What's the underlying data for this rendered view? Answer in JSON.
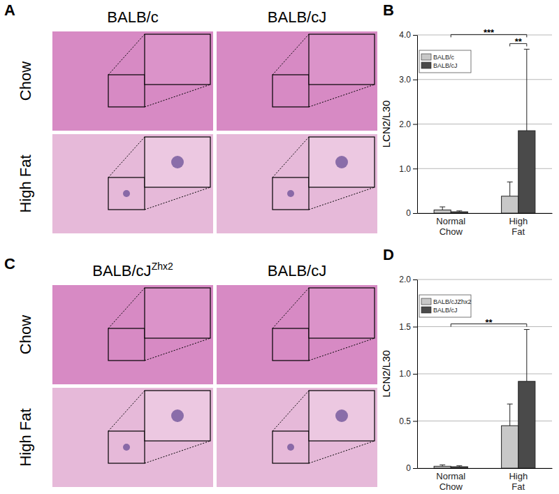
{
  "figure_panels": [
    {
      "label": "A",
      "columns": [
        "BALB/c",
        "BALB/cJ"
      ],
      "rows": [
        "Chow",
        "High Fat"
      ]
    },
    {
      "label": "C",
      "columns": [
        {
          "text": "BALB/cJ",
          "superscript": "Zhx2"
        },
        "BALB/cJ"
      ],
      "rows": [
        "Chow",
        "High Fat"
      ]
    }
  ],
  "chart_data": [
    {
      "type": "bar",
      "title": "B",
      "ylabel": "LCN2/L30",
      "categories": [
        "Normal Chow",
        "High Fat"
      ],
      "series": [
        {
          "name": "BALB/c",
          "color": "#c8c8c8",
          "values": [
            0.07,
            0.38
          ],
          "errors": [
            0.07,
            0.32
          ]
        },
        {
          "name": "BALB/cJ",
          "color": "#4a4a4a",
          "values": [
            0.03,
            1.85
          ],
          "errors": [
            0.02,
            1.83
          ]
        }
      ],
      "ylim": [
        0,
        4
      ],
      "yticks": [
        0,
        {
          "value": 1,
          "label": "1.0"
        },
        {
          "value": 2,
          "label": "2.0"
        },
        {
          "value": 3,
          "label": "3.0"
        },
        {
          "value": 4,
          "label": "4.0"
        }
      ],
      "grid": true,
      "legend": "upper left",
      "annotations": [
        {
          "text": "**",
          "from": [
            "High Fat",
            "BALB/c"
          ],
          "to": [
            "High Fat",
            "BALB/cJ"
          ]
        },
        {
          "text": "***",
          "from": [
            "Normal Chow"
          ],
          "to": [
            "High Fat",
            "BALB/cJ"
          ]
        }
      ]
    },
    {
      "type": "bar",
      "title": "D",
      "ylabel": "LCN2/L30",
      "categories": [
        "Normal Chow",
        "High Fat"
      ],
      "series": [
        {
          "name": "BALB/cJZhx2",
          "color": "#c8c8c8",
          "values": [
            0.02,
            0.45
          ],
          "errors": [
            0.015,
            0.23
          ]
        },
        {
          "name": "BALB/cJ",
          "color": "#4a4a4a",
          "values": [
            0.015,
            0.92
          ],
          "errors": [
            0.01,
            0.55
          ]
        }
      ],
      "ylim": [
        0,
        2
      ],
      "yticks": [
        0,
        0.5,
        {
          "value": 1,
          "label": "1.0"
        },
        1.5,
        {
          "value": 2,
          "label": "2.0"
        }
      ],
      "grid": true,
      "legend": "upper left",
      "annotations": [
        {
          "text": "**",
          "from": [
            "Normal Chow"
          ],
          "to": [
            "High Fat",
            "BALB/cJ"
          ]
        }
      ]
    }
  ]
}
